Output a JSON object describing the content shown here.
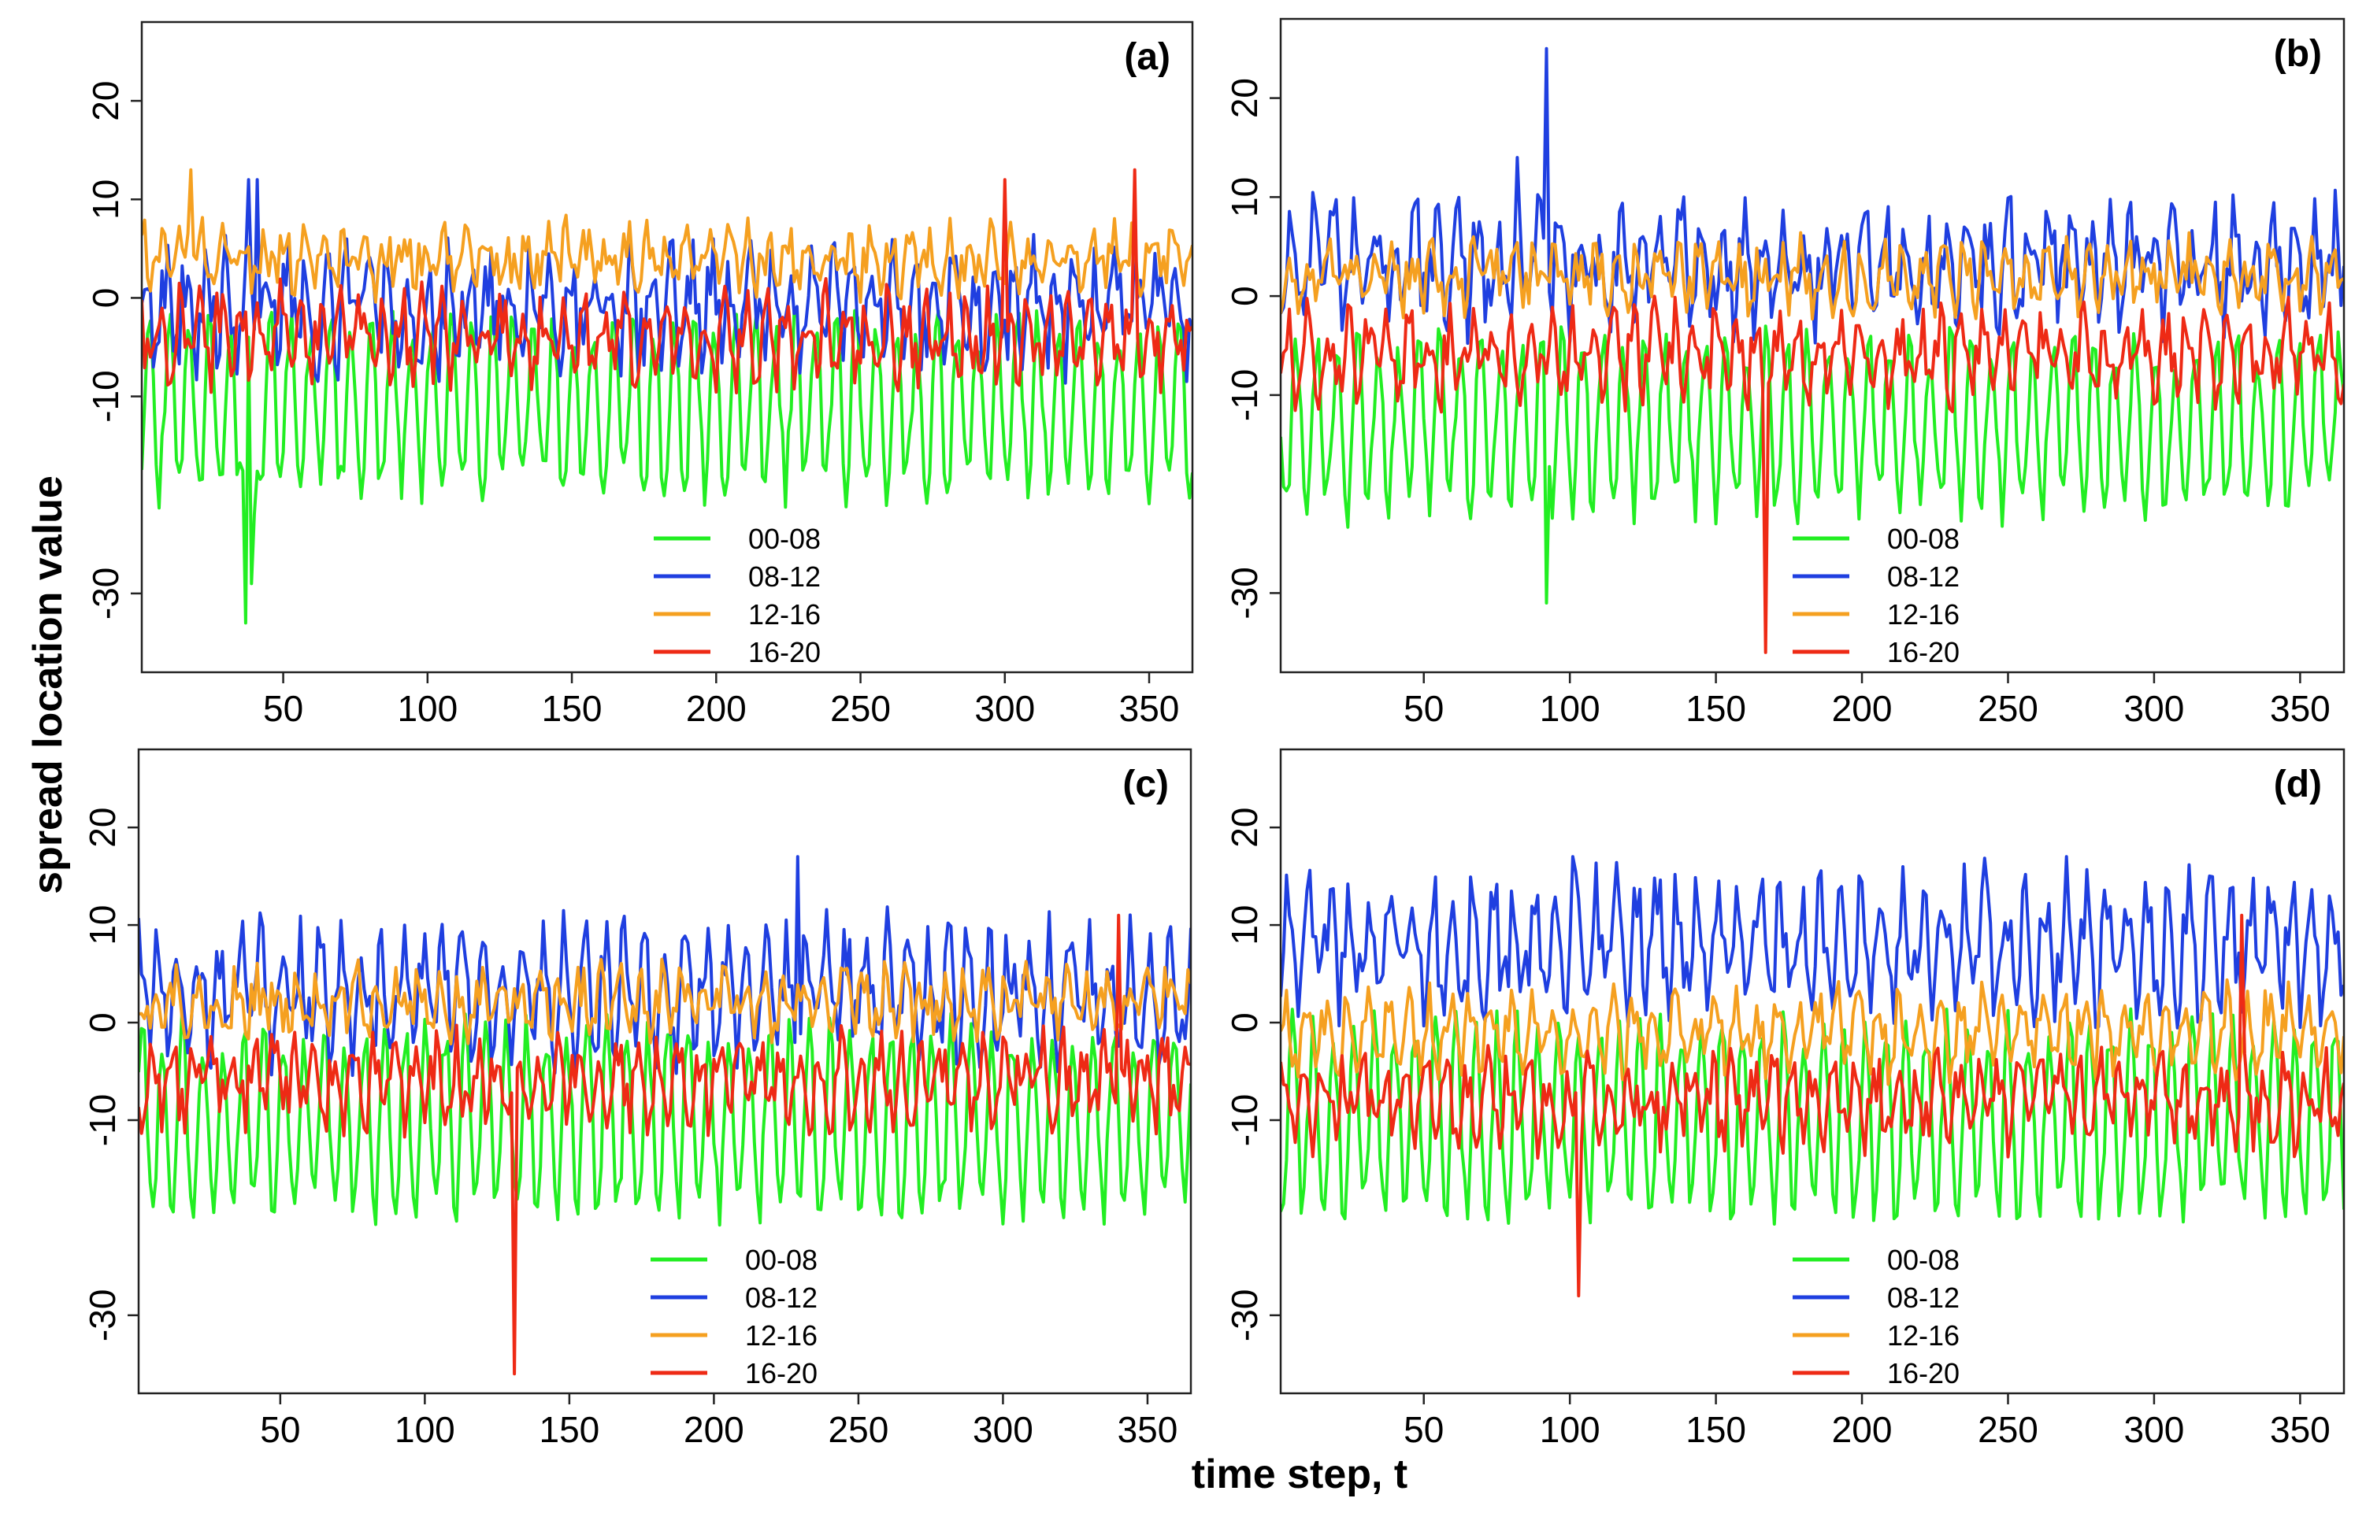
{
  "figure": {
    "xlabel": "time step, t",
    "ylabel": "spread location value"
  },
  "colors": {
    "00-08": "#22ee22",
    "08-12": "#1f3fe0",
    "12-16": "#f5a020",
    "16-20": "#ee2a15"
  },
  "chart_data": [
    {
      "type": "line",
      "panel": "(a)",
      "xlim": [
        1,
        365
      ],
      "ylim": [
        -38,
        28
      ],
      "xticks": [
        50,
        100,
        150,
        200,
        250,
        300,
        350
      ],
      "yticks": [
        -30,
        -10,
        0,
        10,
        20
      ],
      "legend_placement": "bottom-center",
      "series": [
        {
          "name": "00-08",
          "mean": -11,
          "amplitude": 8,
          "noise": 2.5,
          "seed": 11,
          "spikes": [
            [
              37,
              -33
            ],
            [
              39,
              -29
            ],
            [
              40,
              -22
            ]
          ]
        },
        {
          "name": "08-12",
          "mean": -1,
          "amplitude": 4,
          "noise": 4,
          "seed": 12,
          "spikes": [
            [
              38,
              12
            ],
            [
              41,
              12
            ]
          ]
        },
        {
          "name": "12-16",
          "mean": 4,
          "amplitude": 2,
          "noise": 2.5,
          "seed": 13,
          "spikes": [
            [
              18,
              13
            ]
          ]
        },
        {
          "name": "16-20",
          "mean": -4,
          "amplitude": 3,
          "noise": 3,
          "seed": 14,
          "spikes": [
            [
              300,
              12
            ],
            [
              345,
              13
            ]
          ]
        }
      ]
    },
    {
      "type": "line",
      "panel": "(b)",
      "xlim": [
        1,
        365
      ],
      "ylim": [
        -38,
        28
      ],
      "xticks": [
        50,
        100,
        150,
        200,
        250,
        300,
        350
      ],
      "yticks": [
        -30,
        -10,
        0,
        10,
        20
      ],
      "legend_placement": "bottom-center",
      "series": [
        {
          "name": "00-08",
          "mean": -13,
          "amplitude": 8,
          "noise": 2.5,
          "seed": 21,
          "spikes": [
            [
              92,
              -31
            ]
          ]
        },
        {
          "name": "08-12",
          "mean": 3,
          "amplitude": 4,
          "noise": 4,
          "seed": 22,
          "spikes": [
            [
              92,
              25
            ],
            [
              82,
              14
            ]
          ]
        },
        {
          "name": "12-16",
          "mean": 2,
          "amplitude": 2,
          "noise": 2.5,
          "seed": 23,
          "spikes": []
        },
        {
          "name": "16-20",
          "mean": -6,
          "amplitude": 3,
          "noise": 3,
          "seed": 24,
          "spikes": [
            [
              167,
              -36
            ]
          ]
        }
      ]
    },
    {
      "type": "line",
      "panel": "(c)",
      "xlim": [
        1,
        365
      ],
      "ylim": [
        -38,
        28
      ],
      "xticks": [
        50,
        100,
        150,
        200,
        250,
        300,
        350
      ],
      "yticks": [
        -30,
        -10,
        0,
        10,
        20
      ],
      "legend_placement": "bottom-center",
      "series": [
        {
          "name": "00-08",
          "mean": -10,
          "amplitude": 9,
          "noise": 2.5,
          "seed": 31,
          "spikes": []
        },
        {
          "name": "08-12",
          "mean": 3,
          "amplitude": 5,
          "noise": 4,
          "seed": 32,
          "spikes": [
            [
              229,
              17
            ]
          ]
        },
        {
          "name": "12-16",
          "mean": 2,
          "amplitude": 2,
          "noise": 2.5,
          "seed": 33,
          "spikes": []
        },
        {
          "name": "16-20",
          "mean": -6,
          "amplitude": 3,
          "noise": 3,
          "seed": 34,
          "spikes": [
            [
              131,
              -36
            ],
            [
              340,
              11
            ]
          ]
        }
      ]
    },
    {
      "type": "line",
      "panel": "(d)",
      "xlim": [
        1,
        365
      ],
      "ylim": [
        -38,
        28
      ],
      "xticks": [
        50,
        100,
        150,
        200,
        250,
        300,
        350
      ],
      "yticks": [
        -30,
        -10,
        0,
        10,
        20
      ],
      "legend_placement": "bottom-center",
      "series": [
        {
          "name": "00-08",
          "mean": -10,
          "amplitude": 9,
          "noise": 2.5,
          "seed": 41,
          "spikes": []
        },
        {
          "name": "08-12",
          "mean": 8,
          "amplitude": 5,
          "noise": 4,
          "seed": 42,
          "spikes": [
            [
              101,
              17
            ],
            [
              270,
              17
            ]
          ]
        },
        {
          "name": "12-16",
          "mean": -1,
          "amplitude": 3,
          "noise": 2.5,
          "seed": 43,
          "spikes": []
        },
        {
          "name": "16-20",
          "mean": -8,
          "amplitude": 3,
          "noise": 3,
          "seed": 44,
          "spikes": [
            [
              103,
              -28
            ],
            [
              330,
              11
            ]
          ]
        }
      ]
    }
  ]
}
